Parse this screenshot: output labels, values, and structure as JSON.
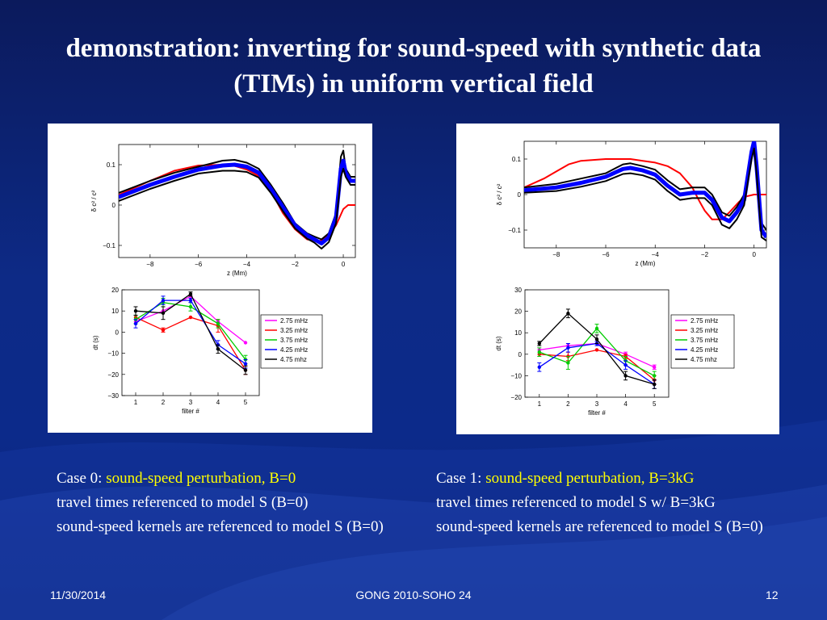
{
  "title": "demonstration: inverting for sound-speed with synthetic data (TIMs) in uniform vertical field",
  "captions": [
    {
      "prefix": "Case 0:",
      "highlight": "sound-speed perturbation, B=0",
      "line2": "travel times referenced to model S (B=0)",
      "line3": "sound-speed kernels are referenced to model S (B=0)"
    },
    {
      "prefix": "Case 1:",
      "highlight": "sound-speed perturbation, B=3kG",
      "line2": "travel times referenced to model S w/ B=3kG",
      "line3": "sound-speed kernels are referenced to model S (B=0)"
    }
  ],
  "footer": {
    "date": "11/30/2014",
    "center": "GONG 2010-SOHO 24",
    "page": "12"
  },
  "colors": {
    "title": "#ffffff",
    "highlight": "#ffff00",
    "magenta": "#ff00ff",
    "red": "#ff0000",
    "green": "#00cc00",
    "blue": "#0000ff",
    "black": "#000000",
    "true_profile": "#e8141a",
    "inverted_blue": "#1f3fe0"
  },
  "chart_data": [
    {
      "type": "line",
      "panel": "left-top",
      "xlabel": "z (Mm)",
      "ylabel": "δ c² / c²",
      "xlim": [
        -9.3,
        0.5
      ],
      "ylim": [
        -0.13,
        0.15
      ],
      "xticks": [
        -8,
        -6,
        -4,
        -2,
        0
      ],
      "yticks": [
        -0.1,
        0,
        0.1
      ],
      "ytick_labels": [
        "−0.1",
        "0",
        "0.1"
      ],
      "xtick_labels": [
        "−8",
        "−6",
        "−4",
        "−2",
        "0"
      ],
      "series": [
        {
          "color": "red",
          "width": 2,
          "points": [
            [
              -9.3,
              0.025
            ],
            [
              -8,
              0.06
            ],
            [
              -7,
              0.085
            ],
            [
              -6,
              0.098
            ],
            [
              -5,
              0.1
            ],
            [
              -4.5,
              0.097
            ],
            [
              -4,
              0.088
            ],
            [
              -3.5,
              0.072
            ],
            [
              -3,
              0.035
            ],
            [
              -2.5,
              -0.02
            ],
            [
              -2,
              -0.06
            ],
            [
              -1.5,
              -0.085
            ],
            [
              -1,
              -0.09
            ],
            [
              -0.6,
              -0.075
            ],
            [
              -0.3,
              -0.05
            ],
            [
              0,
              -0.01
            ],
            [
              0.2,
              0
            ],
            [
              0.5,
              0
            ]
          ]
        },
        {
          "color": "black",
          "width": 2,
          "points": [
            [
              -9.3,
              0.03
            ],
            [
              -8,
              0.06
            ],
            [
              -7,
              0.08
            ],
            [
              -6,
              0.095
            ],
            [
              -5,
              0.11
            ],
            [
              -4.5,
              0.112
            ],
            [
              -4,
              0.105
            ],
            [
              -3.5,
              0.09
            ],
            [
              -3,
              0.05
            ],
            [
              -2.5,
              0.005
            ],
            [
              -2,
              -0.045
            ],
            [
              -1.5,
              -0.07
            ],
            [
              -1.2,
              -0.078
            ],
            [
              -0.9,
              -0.085
            ],
            [
              -0.6,
              -0.07
            ],
            [
              -0.3,
              -0.02
            ],
            [
              -0.1,
              0.12
            ],
            [
              0,
              0.135
            ],
            [
              0.1,
              0.09
            ],
            [
              0.3,
              0.07
            ],
            [
              0.5,
              0.07
            ]
          ]
        },
        {
          "color": "blue",
          "width": 5,
          "points": [
            [
              -9.3,
              0.02
            ],
            [
              -8,
              0.05
            ],
            [
              -7,
              0.07
            ],
            [
              -6,
              0.088
            ],
            [
              -5,
              0.098
            ],
            [
              -4.5,
              0.1
            ],
            [
              -4,
              0.095
            ],
            [
              -3.5,
              0.08
            ],
            [
              -3,
              0.04
            ],
            [
              -2.5,
              -0.005
            ],
            [
              -2,
              -0.05
            ],
            [
              -1.5,
              -0.075
            ],
            [
              -1.2,
              -0.085
            ],
            [
              -0.9,
              -0.095
            ],
            [
              -0.6,
              -0.08
            ],
            [
              -0.3,
              -0.03
            ],
            [
              -0.1,
              0.09
            ],
            [
              0,
              0.11
            ],
            [
              0.1,
              0.08
            ],
            [
              0.3,
              0.06
            ],
            [
              0.5,
              0.06
            ]
          ]
        },
        {
          "color": "black",
          "width": 2,
          "points": [
            [
              -9.3,
              0.01
            ],
            [
              -8,
              0.04
            ],
            [
              -7,
              0.06
            ],
            [
              -6,
              0.078
            ],
            [
              -5,
              0.085
            ],
            [
              -4.5,
              0.085
            ],
            [
              -4,
              0.082
            ],
            [
              -3.5,
              0.068
            ],
            [
              -3,
              0.03
            ],
            [
              -2.5,
              -0.015
            ],
            [
              -2,
              -0.058
            ],
            [
              -1.5,
              -0.083
            ],
            [
              -1.2,
              -0.093
            ],
            [
              -0.9,
              -0.108
            ],
            [
              -0.6,
              -0.092
            ],
            [
              -0.3,
              -0.045
            ],
            [
              -0.1,
              0.07
            ],
            [
              0,
              0.09
            ],
            [
              0.1,
              0.07
            ],
            [
              0.3,
              0.05
            ],
            [
              0.5,
              0.05
            ]
          ]
        }
      ]
    },
    {
      "type": "line",
      "panel": "left-bottom",
      "xlabel": "filter #",
      "ylabel": "dt (s)",
      "categories": [
        1,
        2,
        3,
        4,
        5
      ],
      "xlim": [
        0.5,
        5.5
      ],
      "ylim": [
        -30,
        20
      ],
      "yticks": [
        -30,
        -20,
        -10,
        0,
        10,
        20
      ],
      "ytick_labels": [
        "−30",
        "−20",
        "−10",
        "0",
        "10",
        "20"
      ],
      "xtick_labels": [
        "1",
        "2",
        "3",
        "4",
        "5"
      ],
      "series": [
        {
          "name": "2.75 mHz",
          "color": "magenta",
          "values": [
            5,
            10,
            17,
            5,
            -5
          ],
          "err": [
            0,
            0,
            0,
            0,
            0
          ]
        },
        {
          "name": "3.25 mHz",
          "color": "red",
          "values": [
            7,
            1,
            7,
            3,
            -18
          ],
          "err": [
            0,
            1,
            0,
            3,
            2
          ]
        },
        {
          "name": "3.75 mHz",
          "color": "green",
          "values": [
            6,
            14,
            12,
            4,
            -13
          ],
          "err": [
            2,
            2,
            2,
            2,
            2
          ]
        },
        {
          "name": "4.25 mHz",
          "color": "blue",
          "values": [
            4,
            15,
            15,
            -6,
            -15
          ],
          "err": [
            2,
            2,
            1,
            2,
            2
          ]
        },
        {
          "name": "4.75 mhz",
          "color": "black",
          "values": [
            10,
            9,
            18,
            -8,
            -18
          ],
          "err": [
            2,
            3,
            1,
            2,
            2
          ]
        }
      ]
    },
    {
      "type": "line",
      "panel": "right-top",
      "xlabel": "z (Mm)",
      "ylabel": "δ c² / c²",
      "xlim": [
        -9.3,
        0.5
      ],
      "ylim": [
        -0.15,
        0.15
      ],
      "xticks": [
        -8,
        -6,
        -4,
        -2,
        0
      ],
      "yticks": [
        -0.1,
        0,
        0.1
      ],
      "ytick_labels": [
        "−0.1",
        "0",
        "0.1"
      ],
      "xtick_labels": [
        "−8",
        "−6",
        "−4",
        "−2",
        "0"
      ],
      "series": [
        {
          "color": "red",
          "width": 2,
          "points": [
            [
              -9.3,
              0.02
            ],
            [
              -8.5,
              0.045
            ],
            [
              -8,
              0.065
            ],
            [
              -7.5,
              0.085
            ],
            [
              -7,
              0.095
            ],
            [
              -6,
              0.1
            ],
            [
              -5,
              0.1
            ],
            [
              -4.5,
              0.095
            ],
            [
              -4,
              0.09
            ],
            [
              -3.5,
              0.08
            ],
            [
              -3,
              0.06
            ],
            [
              -2.5,
              0.02
            ],
            [
              -2.2,
              -0.02
            ],
            [
              -2,
              -0.045
            ],
            [
              -1.7,
              -0.07
            ],
            [
              -1.3,
              -0.07
            ],
            [
              -1,
              -0.05
            ],
            [
              -0.6,
              -0.02
            ],
            [
              -0.3,
              -0.005
            ],
            [
              0,
              0
            ],
            [
              0.5,
              0
            ]
          ]
        },
        {
          "color": "black",
          "width": 2,
          "points": [
            [
              -9.3,
              0.02
            ],
            [
              -8,
              0.03
            ],
            [
              -7,
              0.045
            ],
            [
              -6,
              0.06
            ],
            [
              -5.3,
              0.085
            ],
            [
              -5,
              0.088
            ],
            [
              -4.5,
              0.08
            ],
            [
              -4,
              0.07
            ],
            [
              -3.5,
              0.04
            ],
            [
              -3,
              0.015
            ],
            [
              -2.5,
              0.02
            ],
            [
              -2,
              0.02
            ],
            [
              -1.7,
              0.0
            ],
            [
              -1.3,
              -0.05
            ],
            [
              -1,
              -0.06
            ],
            [
              -0.7,
              -0.035
            ],
            [
              -0.4,
              0.0
            ],
            [
              -0.1,
              0.13
            ],
            [
              0,
              0.16
            ],
            [
              0.1,
              0.1
            ],
            [
              0.3,
              -0.08
            ],
            [
              0.5,
              -0.1
            ]
          ]
        },
        {
          "color": "blue",
          "width": 5,
          "points": [
            [
              -9.3,
              0.012
            ],
            [
              -8,
              0.02
            ],
            [
              -7,
              0.033
            ],
            [
              -6,
              0.05
            ],
            [
              -5.3,
              0.072
            ],
            [
              -5,
              0.075
            ],
            [
              -4.5,
              0.068
            ],
            [
              -4,
              0.056
            ],
            [
              -3.5,
              0.025
            ],
            [
              -3,
              0.0
            ],
            [
              -2.5,
              0.005
            ],
            [
              -2,
              0.005
            ],
            [
              -1.7,
              -0.015
            ],
            [
              -1.3,
              -0.065
            ],
            [
              -1,
              -0.075
            ],
            [
              -0.7,
              -0.05
            ],
            [
              -0.4,
              -0.015
            ],
            [
              -0.1,
              0.12
            ],
            [
              0,
              0.15
            ],
            [
              0.1,
              0.08
            ],
            [
              0.3,
              -0.1
            ],
            [
              0.5,
              -0.12
            ]
          ]
        },
        {
          "color": "black",
          "width": 2,
          "points": [
            [
              -9.3,
              0.005
            ],
            [
              -8,
              0.01
            ],
            [
              -7,
              0.022
            ],
            [
              -6,
              0.038
            ],
            [
              -5.3,
              0.058
            ],
            [
              -5,
              0.06
            ],
            [
              -4.5,
              0.054
            ],
            [
              -4,
              0.042
            ],
            [
              -3.5,
              0.01
            ],
            [
              -3,
              -0.015
            ],
            [
              -2.5,
              -0.01
            ],
            [
              -2,
              -0.01
            ],
            [
              -1.7,
              -0.03
            ],
            [
              -1.3,
              -0.085
            ],
            [
              -1,
              -0.095
            ],
            [
              -0.7,
              -0.07
            ],
            [
              -0.4,
              -0.03
            ],
            [
              -0.1,
              0.1
            ],
            [
              0,
              0.13
            ],
            [
              0.1,
              0.06
            ],
            [
              0.3,
              -0.12
            ],
            [
              0.5,
              -0.13
            ]
          ]
        }
      ]
    },
    {
      "type": "line",
      "panel": "right-bottom",
      "xlabel": "filter #",
      "ylabel": "dt (s)",
      "categories": [
        1,
        2,
        3,
        4,
        5
      ],
      "xlim": [
        0.5,
        5.5
      ],
      "ylim": [
        -20,
        30
      ],
      "yticks": [
        -20,
        -10,
        0,
        10,
        20,
        30
      ],
      "ytick_labels": [
        "−20",
        "−10",
        "0",
        "10",
        "20",
        "30"
      ],
      "xtick_labels": [
        "1",
        "2",
        "3",
        "4",
        "5"
      ],
      "series": [
        {
          "name": "2.75 mHz",
          "color": "magenta",
          "values": [
            2,
            4,
            5,
            0,
            -6
          ],
          "err": [
            0,
            0,
            0,
            1,
            1
          ]
        },
        {
          "name": "3.25 mHz",
          "color": "red",
          "values": [
            0,
            -1,
            2,
            -1,
            -12
          ],
          "err": [
            0,
            2,
            0,
            1,
            2
          ]
        },
        {
          "name": "3.75 mHz",
          "color": "green",
          "values": [
            1,
            -4,
            12,
            -3,
            -10
          ],
          "err": [
            2,
            3,
            2,
            2,
            2
          ]
        },
        {
          "name": "4.25 mHz",
          "color": "blue",
          "values": [
            -6,
            3,
            5,
            -5,
            -14
          ],
          "err": [
            2,
            2,
            1,
            2,
            2
          ]
        },
        {
          "name": "4.75 mhz",
          "color": "black",
          "values": [
            5,
            19,
            7,
            -10,
            -14
          ],
          "err": [
            1,
            2,
            2,
            2,
            2
          ]
        }
      ]
    }
  ]
}
